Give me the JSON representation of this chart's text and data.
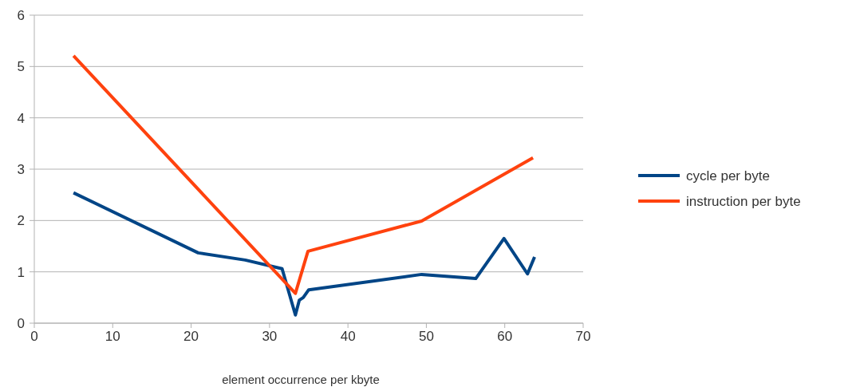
{
  "chart_data": {
    "type": "line",
    "xlabel": "element occurrence per kbyte",
    "xlim": [
      0,
      70
    ],
    "xticks": [
      0,
      10,
      20,
      30,
      40,
      50,
      60,
      70
    ],
    "ylim": [
      0,
      6
    ],
    "yticks": [
      0,
      1,
      2,
      3,
      4,
      5,
      6
    ],
    "grid": "y",
    "legend": "right",
    "marker": "none",
    "line_style": "solid",
    "series": [
      {
        "name": "cycle per byte",
        "color": "#004586",
        "x": [
          5,
          20.9,
          26.9,
          31.6,
          33.3,
          33.8,
          34.3,
          35,
          49.4,
          56.3,
          59.9,
          62.9,
          63.8
        ],
        "values": [
          2.54,
          1.37,
          1.23,
          1.06,
          0.16,
          0.45,
          0.5,
          0.65,
          0.95,
          0.87,
          1.65,
          0.96,
          1.29
        ]
      },
      {
        "name": "instruction per byte",
        "color": "#ff420e",
        "x": [
          5,
          33.3,
          34.9,
          49.4,
          63.6
        ],
        "values": [
          5.21,
          0.58,
          1.4,
          1.99,
          3.22
        ]
      }
    ]
  }
}
